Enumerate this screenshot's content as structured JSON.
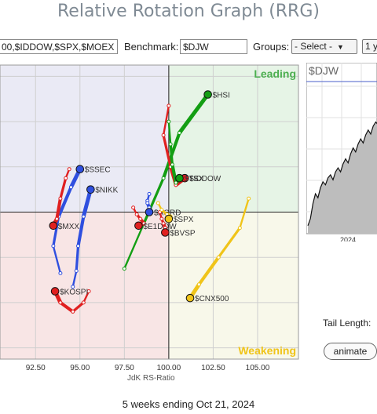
{
  "title": "Relative Rotation Graph (RRG)",
  "controls": {
    "symbols_value": "00,$IDDOW,$SPX,$MOEX",
    "benchmark_label": "Benchmark:",
    "benchmark_value": "$DJW",
    "groups_label": "Groups:",
    "groups_value": "- Select -",
    "period_value": "1 y"
  },
  "tail_length_label": "Tail Length:",
  "animate_label": "animate",
  "footer": "5 weeks ending Oct 21, 2024",
  "colors": {
    "leading_bg": "#e6f4e6",
    "improving_bg": "#eaeaf5",
    "lagging_bg": "#f8e5e5",
    "weakening_bg": "#f8f8ea",
    "leading_text": "#4caf50",
    "weakening_text": "#f0c419"
  },
  "chart_data": [
    {
      "type": "scatter",
      "subtype": "relative-rotation-graph",
      "xlabel": "JdK RS-Ratio",
      "ylabel": "",
      "xlim": [
        90.5,
        107.3
      ],
      "ylim": [
        93.5,
        106.5
      ],
      "center": [
        100,
        100
      ],
      "xticks": [
        92.5,
        95.0,
        97.5,
        100.0,
        102.5,
        105.0
      ],
      "xtick_labels": [
        "92.50",
        "95.00",
        "97.50",
        "100.00",
        "102.50",
        "105.00"
      ],
      "grid": true,
      "quadrants": [
        {
          "name": "Leading",
          "position": "top-right"
        },
        {
          "name": "Weakening",
          "position": "bottom-right"
        }
      ],
      "series": [
        {
          "name": "$HSI",
          "color": "#139e13",
          "x": [
            97.5,
            98.6,
            99.7,
            100.6,
            102.2
          ],
          "y": [
            97.5,
            99.5,
            101.5,
            103.5,
            105.2
          ]
        },
        {
          "name": "$SSEC",
          "color": "#2f4fdf",
          "x": [
            93.9,
            93.5,
            93.8,
            94.5,
            95.0
          ],
          "y": [
            97.3,
            98.5,
            99.8,
            101.1,
            101.9
          ]
        },
        {
          "name": "$NIKK",
          "color": "#2f4fdf",
          "x": [
            94.6,
            94.8,
            94.9,
            95.2,
            95.6
          ],
          "y": [
            96.7,
            97.4,
            98.5,
            99.8,
            101.0
          ]
        },
        {
          "name": "$MXX",
          "color": "#e02020",
          "x": [
            94.4,
            94.2,
            93.9,
            93.7,
            93.5
          ],
          "y": [
            101.9,
            101.5,
            100.6,
            99.7,
            99.4
          ]
        },
        {
          "name": "$KOSPI",
          "color": "#e02020",
          "x": [
            95.5,
            95.2,
            94.6,
            93.9,
            93.6
          ],
          "y": [
            96.5,
            96.0,
            95.6,
            96.0,
            96.5
          ]
        },
        {
          "name": "$IDDOW",
          "color": "#e02020",
          "x": [
            100.0,
            99.7,
            100.1,
            100.4,
            100.9
          ],
          "y": [
            104.7,
            103.4,
            102.0,
            101.2,
            101.5
          ]
        },
        {
          "name": "$TSX",
          "color": "#139e13",
          "x": [
            100.0,
            100.1,
            100.2,
            100.4,
            100.6
          ],
          "y": [
            104.0,
            103.0,
            102.1,
            101.3,
            101.5
          ]
        },
        {
          "name": "$AORD",
          "color": "#2f4fdf",
          "x": [
            98.9,
            98.8,
            98.8,
            98.9,
            98.9
          ],
          "y": [
            100.8,
            100.5,
            100.4,
            100.2,
            100.0
          ]
        },
        {
          "name": "$E1DOW",
          "color": "#e02020",
          "x": [
            98.0,
            98.2,
            98.4,
            98.6,
            98.3
          ],
          "y": [
            100.2,
            99.9,
            99.7,
            99.5,
            99.4
          ]
        },
        {
          "name": "$BVSP",
          "color": "#e02020",
          "x": [
            99.5,
            99.6,
            99.7,
            99.8,
            99.8
          ],
          "y": [
            100.0,
            99.7,
            99.5,
            99.3,
            99.1
          ]
        },
        {
          "name": "$SPX",
          "color": "#f0c419",
          "x": [
            99.4,
            99.6,
            99.9,
            100.1,
            100.0
          ],
          "y": [
            100.4,
            100.1,
            99.9,
            99.8,
            99.7
          ]
        },
        {
          "name": "$CNX500",
          "color": "#f0c419",
          "x": [
            104.5,
            104.0,
            102.8,
            101.7,
            101.2
          ],
          "y": [
            100.6,
            99.3,
            98.0,
            96.8,
            96.2
          ]
        }
      ]
    },
    {
      "type": "line",
      "title": "$DJW",
      "xticks": [
        "2024"
      ],
      "series": [
        {
          "name": "$DJW",
          "values": [
            8,
            15,
            30,
            40,
            36,
            46,
            52,
            49,
            56,
            59,
            54,
            62,
            66,
            62,
            70,
            75,
            71,
            80,
            86,
            82,
            90,
            95,
            91,
            99,
            104,
            100,
            108,
            112,
            109,
            116,
            119
          ]
        }
      ]
    }
  ]
}
